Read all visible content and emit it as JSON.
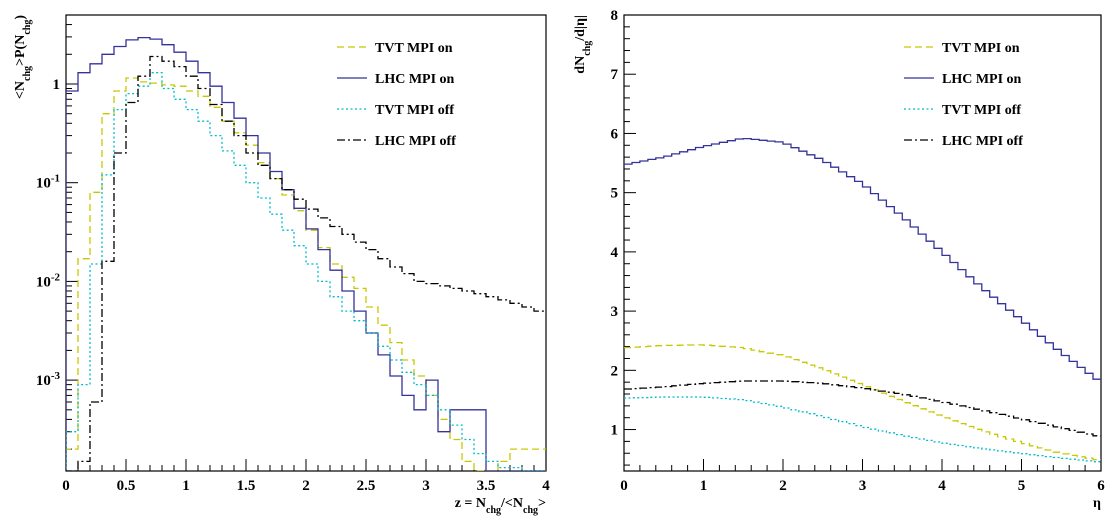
{
  "chart_data": [
    {
      "type": "line",
      "title": "",
      "xlabel": "z = N_chg/<N_chg>",
      "ylabel": "<N_chg>P(N_chg)",
      "xlim": [
        0,
        4
      ],
      "ylim": [
        0.00012,
        5
      ],
      "yscale": "log",
      "grid": false,
      "legend_position": "top-right",
      "x_ticks": [
        "0",
        "0.5",
        "1",
        "1.5",
        "2",
        "2.5",
        "3",
        "3.5",
        "4"
      ],
      "y_ticks": [
        "10^-3",
        "10^-2",
        "10^-1",
        "1"
      ],
      "bin_edges": [
        0,
        0.1,
        0.2,
        0.3,
        0.4,
        0.5,
        0.6,
        0.7,
        0.8,
        0.9,
        1.0,
        1.1,
        1.2,
        1.3,
        1.4,
        1.5,
        1.6,
        1.7,
        1.8,
        1.9,
        2.0,
        2.1,
        2.2,
        2.3,
        2.4,
        2.5,
        2.6,
        2.7,
        2.8,
        2.9,
        3.0,
        3.1,
        3.2,
        3.3,
        3.4,
        3.5,
        3.6,
        3.7,
        3.8,
        3.9,
        4.0
      ],
      "series": [
        {
          "name": "TVT MPI on",
          "color": "#c8c800",
          "dash": "dashed",
          "values": [
            0.0002,
            0.017,
            0.08,
            0.5,
            0.85,
            1.15,
            1.05,
            1.02,
            0.98,
            0.95,
            0.85,
            0.75,
            0.58,
            0.42,
            0.32,
            0.24,
            0.16,
            0.11,
            0.075,
            0.052,
            0.033,
            0.022,
            0.015,
            0.011,
            0.0085,
            0.0055,
            0.0036,
            0.0024,
            0.0016,
            0.0011,
            0.0007,
            0.0004,
            0.00025,
            0.00015,
            0.00012,
            0.00012,
            0.00015,
            0.0002,
            0.0002,
            0.0002
          ]
        },
        {
          "name": "LHC MPI on",
          "color": "#333399",
          "dash": "solid",
          "values": [
            0.85,
            1.3,
            1.6,
            2.0,
            2.4,
            2.8,
            2.95,
            2.85,
            2.5,
            2.1,
            1.7,
            1.3,
            0.95,
            0.65,
            0.45,
            0.3,
            0.2,
            0.13,
            0.085,
            0.055,
            0.034,
            0.021,
            0.013,
            0.008,
            0.005,
            0.003,
            0.0018,
            0.0011,
            0.0007,
            0.0005,
            0.001,
            0.0003,
            0.0005,
            0.0005,
            0.0005,
            0.00012,
            0.00012,
            0.00012,
            0.00012,
            0.00012
          ]
        },
        {
          "name": "TVT MPI off",
          "color": "#00bbcc",
          "dash": "dotted",
          "values": [
            0.0003,
            0.0009,
            0.015,
            0.12,
            0.55,
            0.8,
            0.95,
            1.3,
            0.9,
            0.7,
            0.55,
            0.42,
            0.3,
            0.21,
            0.15,
            0.1,
            0.07,
            0.048,
            0.033,
            0.023,
            0.015,
            0.01,
            0.007,
            0.005,
            0.004,
            0.003,
            0.0022,
            0.0016,
            0.0012,
            0.0009,
            0.0007,
            0.0005,
            0.00035,
            0.00025,
            0.00018,
            0.00015,
            0.00013,
            0.00013,
            0.00012,
            0.00012
          ]
        },
        {
          "name": "LHC MPI off",
          "color": "#000000",
          "dash": "dashdot",
          "values": [
            0.00012,
            0.00015,
            0.0006,
            0.016,
            0.2,
            0.65,
            1.2,
            1.9,
            1.7,
            1.5,
            1.2,
            0.9,
            0.62,
            0.42,
            0.3,
            0.2,
            0.15,
            0.11,
            0.085,
            0.068,
            0.054,
            0.044,
            0.036,
            0.03,
            0.025,
            0.021,
            0.017,
            0.014,
            0.012,
            0.01,
            0.0095,
            0.009,
            0.0085,
            0.008,
            0.0075,
            0.007,
            0.0065,
            0.006,
            0.0055,
            0.005
          ]
        }
      ]
    },
    {
      "type": "line",
      "title": "",
      "xlabel": "η",
      "ylabel": "dN_chg/d|η|",
      "xlim": [
        0,
        6
      ],
      "ylim": [
        0.3,
        8
      ],
      "grid": false,
      "legend_position": "top-right",
      "x_ticks": [
        "0",
        "1",
        "2",
        "3",
        "4",
        "5",
        "6"
      ],
      "y_ticks": [
        "1",
        "2",
        "3",
        "4",
        "5",
        "6",
        "7",
        "8"
      ],
      "series": [
        {
          "name": "TVT MPI on",
          "color": "#c8c800",
          "dash": "dashed",
          "x": [
            0,
            0.5,
            1.0,
            1.5,
            2.0,
            2.5,
            3.0,
            3.5,
            4.0,
            4.5,
            5.0,
            5.5,
            6.0
          ],
          "y": [
            2.38,
            2.42,
            2.43,
            2.38,
            2.25,
            2.02,
            1.75,
            1.48,
            1.22,
            0.98,
            0.78,
            0.6,
            0.48
          ]
        },
        {
          "name": "LHC MPI on",
          "color": "#333399",
          "dash": "solid",
          "x": [
            0,
            0.5,
            1.0,
            1.5,
            2.0,
            2.5,
            3.0,
            3.5,
            4.0,
            4.5,
            5.0,
            5.5,
            6.0
          ],
          "y": [
            5.47,
            5.6,
            5.78,
            5.92,
            5.85,
            5.55,
            5.15,
            4.6,
            4.0,
            3.4,
            2.85,
            2.3,
            1.8
          ]
        },
        {
          "name": "TVT MPI off",
          "color": "#00bbcc",
          "dash": "dotted",
          "x": [
            0,
            0.5,
            1.0,
            1.5,
            2.0,
            2.5,
            3.0,
            3.5,
            4.0,
            4.5,
            5.0,
            5.5,
            6.0
          ],
          "y": [
            1.53,
            1.55,
            1.55,
            1.5,
            1.38,
            1.22,
            1.05,
            0.9,
            0.78,
            0.68,
            0.6,
            0.52,
            0.45
          ]
        },
        {
          "name": "LHC MPI off",
          "color": "#000000",
          "dash": "dashdot",
          "x": [
            0,
            0.5,
            1.0,
            1.5,
            2.0,
            2.5,
            3.0,
            3.5,
            4.0,
            4.5,
            5.0,
            5.5,
            6.0
          ],
          "y": [
            1.68,
            1.72,
            1.78,
            1.82,
            1.82,
            1.78,
            1.7,
            1.6,
            1.47,
            1.33,
            1.18,
            1.03,
            0.88
          ]
        }
      ]
    }
  ]
}
